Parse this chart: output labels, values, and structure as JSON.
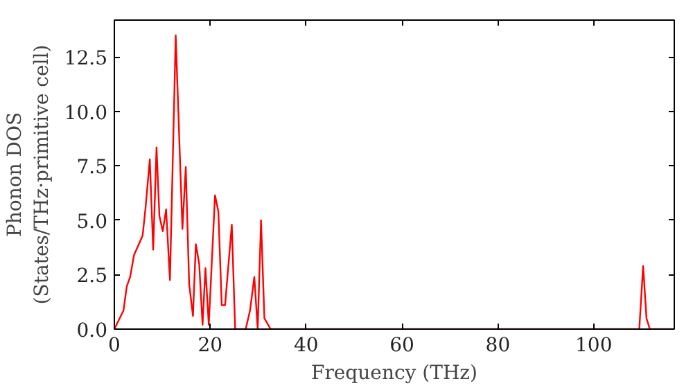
{
  "chart_data": {
    "type": "line",
    "xlabel": "Frequency (THz)",
    "ylabel": "Phonon DOS\n(States/THz·primitive cell)",
    "x": [
      0,
      1.9,
      2.6,
      3.3,
      4.1,
      5.9,
      6.5,
      7.4,
      8.1,
      8.8,
      9.4,
      10.1,
      10.8,
      11.6,
      12.8,
      14.2,
      14.9,
      15.6,
      16.4,
      17.0,
      17.7,
      18.4,
      19.0,
      19.7,
      21.0,
      21.7,
      22.4,
      23.1,
      24.5,
      25.2,
      27.4,
      28.3,
      29.2,
      29.9,
      30.6,
      31.3,
      32.6,
      109.5,
      110.3,
      111.0,
      111.7,
      116.5
    ],
    "series": [
      {
        "color": "#ff0000",
        "values": [
          0,
          0.85,
          1.97,
          2.4,
          3.4,
          4.3,
          5.55,
          7.8,
          3.65,
          8.35,
          5.2,
          4.5,
          5.5,
          2.25,
          13.5,
          4.6,
          7.45,
          2.1,
          0.6,
          3.9,
          3.0,
          0.2,
          2.8,
          0.2,
          6.15,
          5.4,
          1.1,
          1.1,
          4.8,
          0,
          0,
          0.85,
          2.4,
          0,
          5.0,
          0.5,
          0,
          0,
          2.9,
          0.5,
          0,
          0
        ]
      }
    ],
    "xlim": [
      0,
      116.8
    ],
    "ylim": [
      0,
      14.2
    ],
    "xticks": [
      0,
      20,
      40,
      60,
      80,
      100
    ],
    "yticks": [
      {
        "value": 0,
        "label": "0.0"
      },
      {
        "value": 2.5,
        "label": "2.5"
      },
      {
        "value": 5,
        "label": "5.0"
      },
      {
        "value": 7.5,
        "label": "7.5"
      },
      {
        "value": 10,
        "label": "10.0"
      },
      {
        "value": 12.5,
        "label": "12.5"
      }
    ],
    "grid": false,
    "line_style": "solid"
  }
}
